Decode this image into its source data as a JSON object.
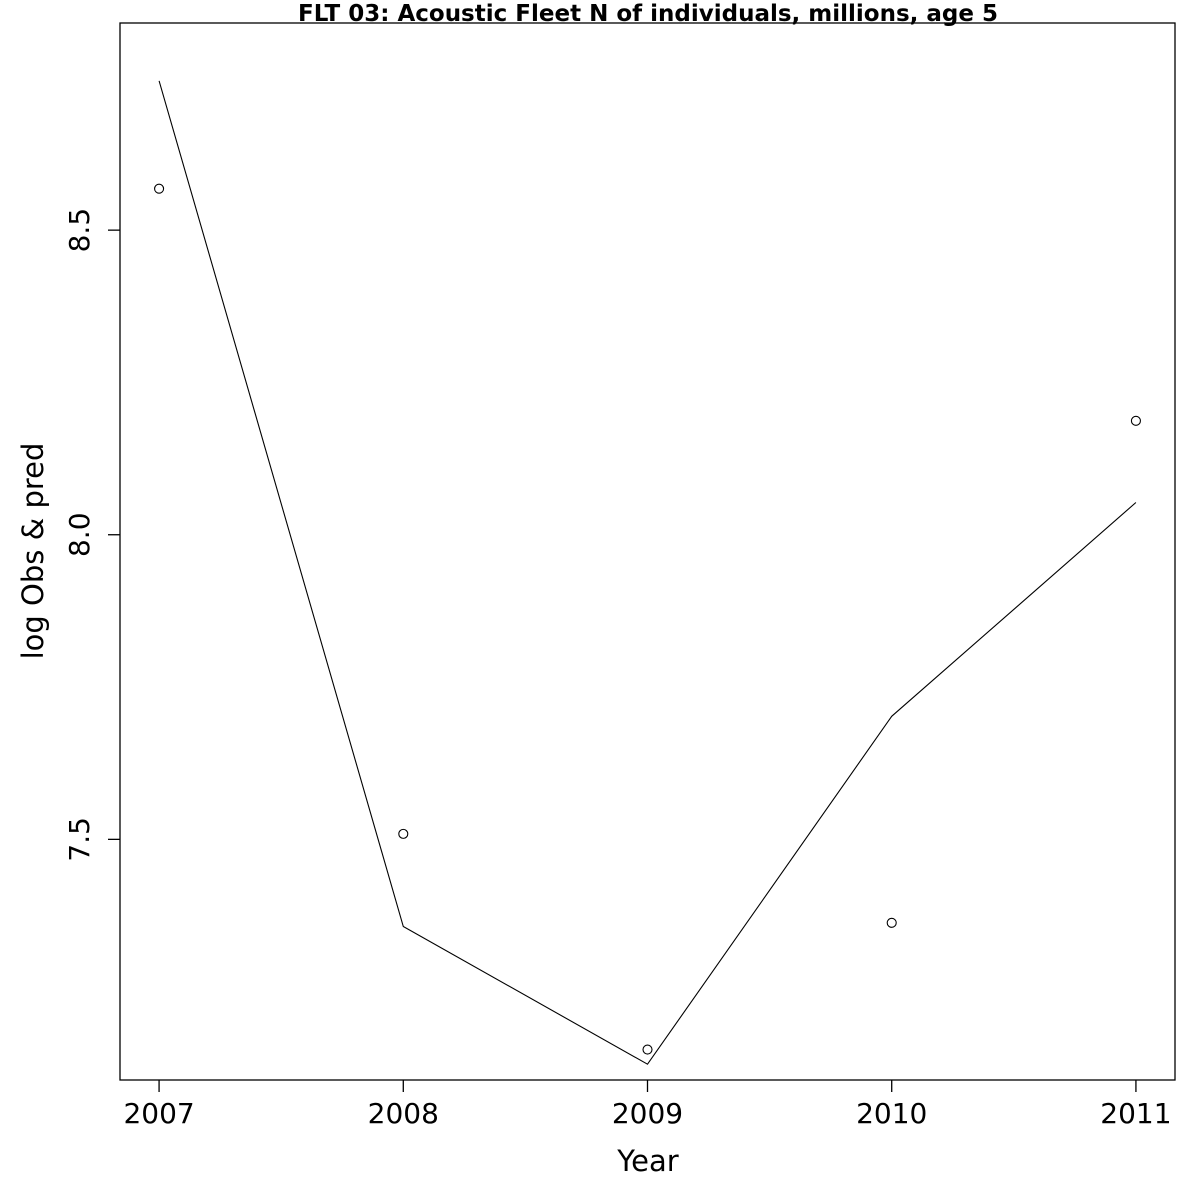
{
  "chart_data": {
    "type": "line",
    "title": "FLT 03: Acoustic Fleet  N of individuals, millions, age 5",
    "xlabel": "Year",
    "ylabel": "log Obs & pred",
    "x": [
      2007,
      2008,
      2009,
      2010,
      2011
    ],
    "x_tick_labels": [
      "2007",
      "2008",
      "2009",
      "2010",
      "2011"
    ],
    "y_ticks": [
      7.5,
      8.0,
      8.5
    ],
    "y_tick_labels": [
      "7.5",
      "8.0",
      "8.5"
    ],
    "xlim": [
      2006.84,
      2011.16
    ],
    "ylim": [
      7.105,
      8.84
    ],
    "grid": false,
    "series": [
      {
        "style": "points",
        "values": [
          8.568,
          7.509,
          7.155,
          7.363,
          8.187
        ]
      },
      {
        "style": "line",
        "values": [
          8.745,
          7.357,
          7.131,
          7.702,
          8.053
        ]
      }
    ],
    "colors": {
      "line": "#000000",
      "points": "#000000",
      "axes": "#000000"
    }
  }
}
